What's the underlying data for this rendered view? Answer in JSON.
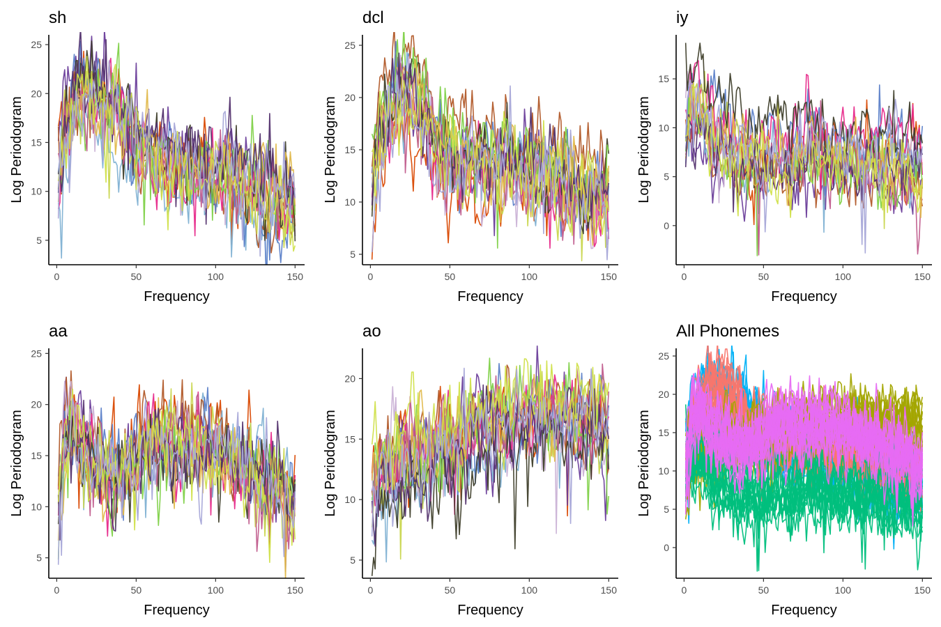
{
  "chart_data": [
    {
      "type": "line",
      "title": "sh",
      "xlabel": "Frequency",
      "ylabel": "Log Periodogram",
      "xlim": [
        -5,
        156
      ],
      "ylim": [
        2.5,
        26
      ],
      "xticks": [
        0,
        50,
        100,
        150
      ],
      "yticks": [
        5,
        10,
        15,
        20,
        25
      ],
      "profile": {
        "x": [
          1,
          5,
          10,
          15,
          20,
          25,
          30,
          35,
          40,
          45,
          50,
          60,
          70,
          80,
          90,
          100,
          110,
          120,
          130,
          140,
          150
        ],
        "y": [
          11.5,
          17.0,
          18.8,
          20.3,
          21.0,
          20.7,
          19.9,
          19.2,
          18.2,
          16.8,
          15.2,
          14.0,
          13.3,
          13.0,
          12.8,
          12.9,
          12.4,
          11.7,
          10.6,
          9.9,
          9.0
        ]
      },
      "amplitude": 2.0,
      "spread": 1.3,
      "n_series": 15
    },
    {
      "type": "line",
      "title": "dcl",
      "xlabel": "Frequency",
      "ylabel": "Log Periodogram",
      "xlim": [
        -5,
        156
      ],
      "ylim": [
        4,
        26
      ],
      "xticks": [
        0,
        50,
        100,
        150
      ],
      "yticks": [
        5,
        10,
        15,
        20,
        25
      ],
      "profile": {
        "x": [
          1,
          5,
          10,
          15,
          20,
          25,
          30,
          35,
          40,
          45,
          50,
          60,
          70,
          80,
          90,
          100,
          110,
          120,
          130,
          140,
          150
        ],
        "y": [
          11.5,
          17.0,
          18.6,
          20.0,
          21.2,
          20.8,
          20.0,
          18.4,
          16.5,
          15.3,
          14.8,
          14.3,
          14.3,
          14.6,
          14.1,
          13.6,
          13.2,
          12.6,
          12.2,
          11.6,
          10.6
        ]
      },
      "amplitude": 1.9,
      "spread": 1.4,
      "n_series": 15
    },
    {
      "type": "line",
      "title": "iy",
      "xlabel": "Frequency",
      "ylabel": "Log Periodogram",
      "xlim": [
        -5,
        156
      ],
      "ylim": [
        -4,
        19.5
      ],
      "xticks": [
        0,
        50,
        100,
        150
      ],
      "yticks": [
        0,
        5,
        10,
        15
      ],
      "profile": {
        "x": [
          1,
          5,
          10,
          15,
          20,
          25,
          30,
          35,
          40,
          45,
          50,
          60,
          70,
          80,
          90,
          100,
          110,
          120,
          130,
          140,
          150
        ],
        "y": [
          9.5,
          12.5,
          11.8,
          10.0,
          8.6,
          7.8,
          7.3,
          7.0,
          6.9,
          6.7,
          6.8,
          7.0,
          7.1,
          7.3,
          7.0,
          6.7,
          6.6,
          6.4,
          6.2,
          6.1,
          5.7
        ]
      },
      "amplitude": 1.6,
      "spread": 1.5,
      "n_series": 15
    },
    {
      "type": "line",
      "title": "aa",
      "xlabel": "Frequency",
      "ylabel": "Log Periodogram",
      "xlim": [
        -5,
        156
      ],
      "ylim": [
        3,
        25.5
      ],
      "xticks": [
        0,
        50,
        100,
        150
      ],
      "yticks": [
        5,
        10,
        15,
        20,
        25
      ],
      "profile": {
        "x": [
          1,
          5,
          10,
          15,
          20,
          25,
          30,
          35,
          40,
          45,
          50,
          60,
          70,
          80,
          90,
          100,
          110,
          120,
          130,
          140,
          150
        ],
        "y": [
          10.5,
          17.5,
          18.5,
          17.0,
          15.3,
          14.3,
          13.8,
          13.6,
          13.8,
          14.3,
          15.0,
          16.0,
          16.4,
          16.3,
          15.9,
          15.3,
          14.6,
          13.8,
          12.8,
          11.5,
          9.8
        ]
      },
      "amplitude": 2.0,
      "spread": 1.4,
      "n_series": 15
    },
    {
      "type": "line",
      "title": "ao",
      "xlabel": "Frequency",
      "ylabel": "Log Periodogram",
      "xlim": [
        -5,
        156
      ],
      "ylim": [
        3.5,
        22.5
      ],
      "xticks": [
        0,
        50,
        100,
        150
      ],
      "yticks": [
        5,
        10,
        15,
        20
      ],
      "profile": {
        "x": [
          1,
          5,
          10,
          15,
          20,
          25,
          30,
          35,
          40,
          45,
          50,
          60,
          70,
          80,
          90,
          100,
          110,
          120,
          130,
          140,
          150
        ],
        "y": [
          10.5,
          12.0,
          12.8,
          13.0,
          13.1,
          13.2,
          13.4,
          13.5,
          13.7,
          14.0,
          14.5,
          15.2,
          15.8,
          16.2,
          16.6,
          17.0,
          17.2,
          17.1,
          16.8,
          16.4,
          16.0
        ]
      },
      "amplitude": 1.7,
      "spread": 1.3,
      "n_series": 15
    },
    {
      "type": "line",
      "title": "All Phonemes",
      "xlabel": "Frequency",
      "ylabel": "Log Periodogram",
      "xlim": [
        -5,
        156
      ],
      "ylim": [
        -4,
        26
      ],
      "xticks": [
        0,
        50,
        100,
        150
      ],
      "yticks": [
        0,
        5,
        10,
        15,
        20,
        25
      ],
      "combined": true,
      "n_series": 75
    }
  ],
  "palette": {
    "panel_lines": [
      "#d94801",
      "#6a3d9a",
      "#80b1d3",
      "#b15928",
      "#5b7fc8",
      "#cab2d6",
      "#e7298a",
      "#c9d64e",
      "#3e3e2a",
      "#7fd148",
      "#c05b8c",
      "#e0b84a",
      "#52306d",
      "#d0e04a",
      "#a6a6d8"
    ],
    "combined_groups": {
      "sh": "#00b0f6",
      "dcl": "#f8766d",
      "iy": "#00bf7d",
      "aa": "#e76bf3",
      "ao": "#a3a500"
    }
  }
}
